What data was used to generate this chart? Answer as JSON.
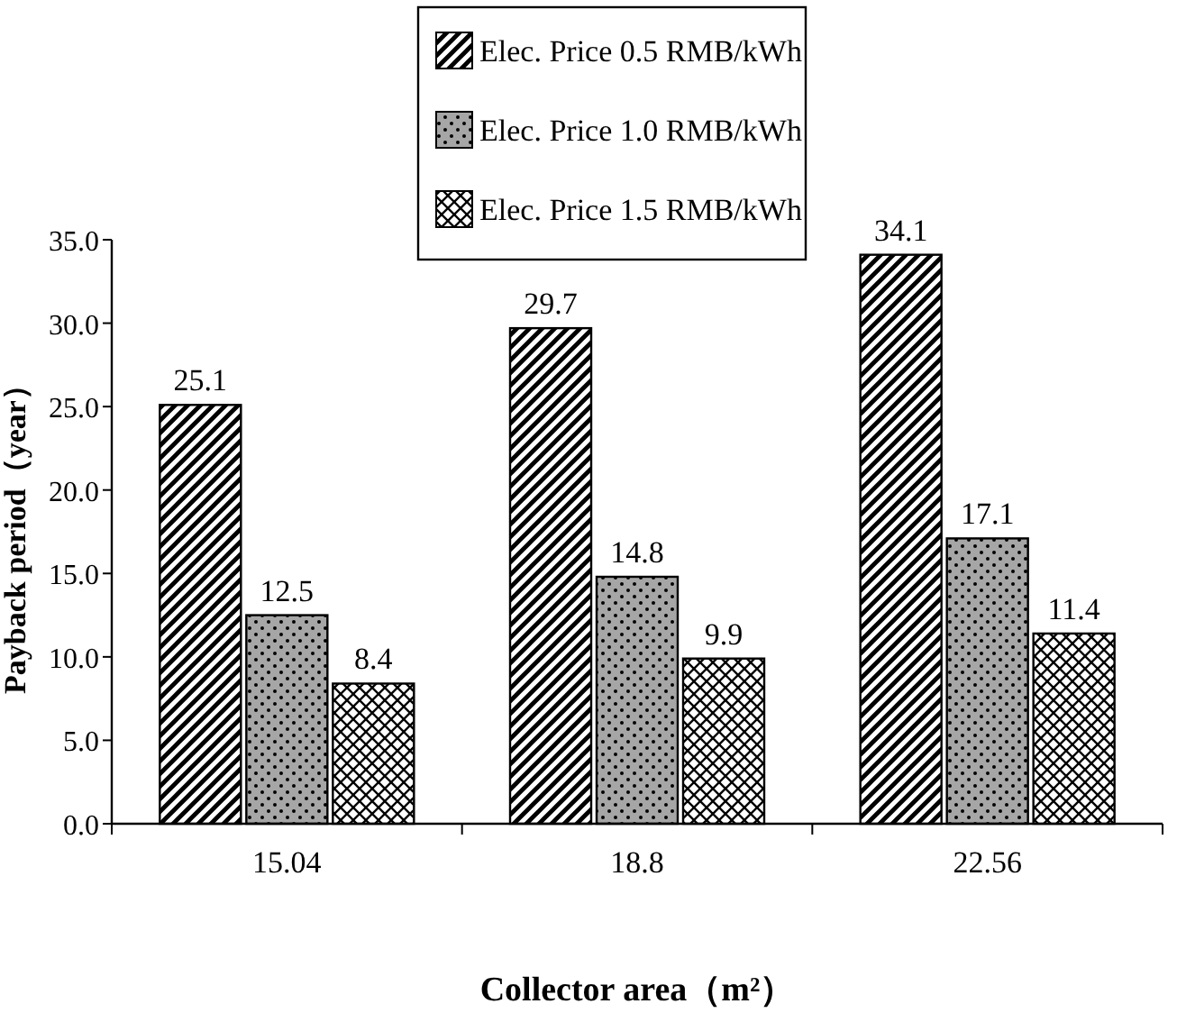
{
  "chart_data": {
    "type": "bar",
    "xlabel": "Collector area（m²）",
    "ylabel": "Payback period（year）",
    "categories": [
      "15.04",
      "18.8",
      "22.56"
    ],
    "series": [
      {
        "name": "Elec. Price 0.5 RMB/kWh",
        "color": "#000000",
        "values": [
          25.1,
          29.7,
          34.1
        ]
      },
      {
        "name": "Elec. Price 1.0 RMB/kWh",
        "color": "#000000",
        "values": [
          12.5,
          14.8,
          17.1
        ]
      },
      {
        "name": "Elec. Price 1.5 RMB/kWh",
        "color": "#000000",
        "values": [
          8.4,
          9.9,
          11.4
        ]
      }
    ],
    "ylim": [
      0,
      35
    ],
    "yticks": [
      {
        "value": 0,
        "label": "0.0"
      },
      {
        "value": 5,
        "label": "5.0"
      },
      {
        "value": 10,
        "label": "10.0"
      },
      {
        "value": 15,
        "label": "15.0"
      },
      {
        "value": 20,
        "label": "20.0"
      },
      {
        "value": 25,
        "label": "25.0"
      },
      {
        "value": 30,
        "label": "30.0"
      },
      {
        "value": 35,
        "label": "35.0"
      }
    ],
    "data_labels": true,
    "legend": "top",
    "grid": false
  }
}
